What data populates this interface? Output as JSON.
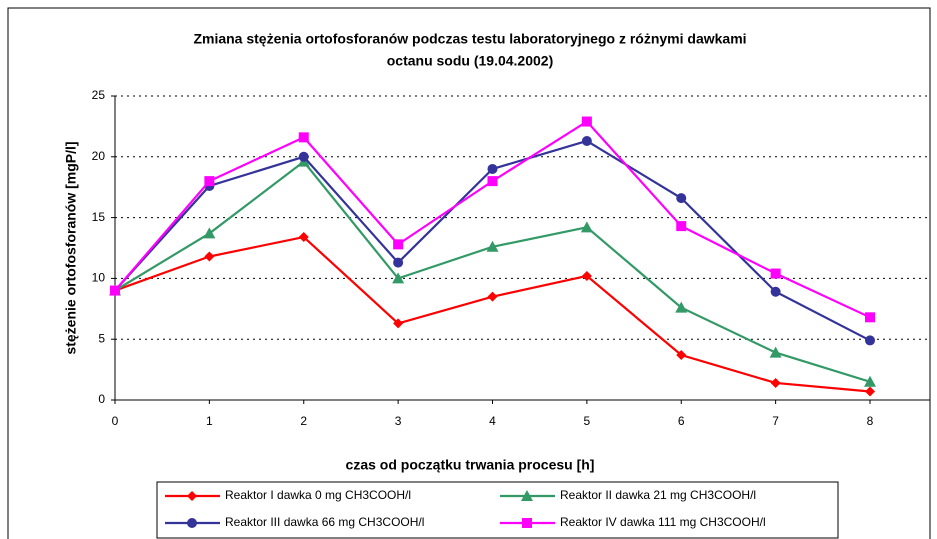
{
  "chart_data": {
    "type": "line",
    "title": [
      "Zmiana stężenia ortofosforanów   podczas testu laboratoryjnego z różnymi dawkami",
      "octanu sodu (19.04.2002)"
    ],
    "x_label": "czas od początku trwania procesu [h]",
    "y_label": "stężenie ortofosforanów [mgP/l]",
    "x": [
      0,
      1,
      2,
      3,
      4,
      5,
      6,
      7,
      8
    ],
    "xlim": [
      0,
      8
    ],
    "xticks": [
      0,
      1,
      2,
      3,
      4,
      5,
      6,
      7,
      8
    ],
    "ylim": [
      0,
      25
    ],
    "yticks": [
      0,
      5,
      10,
      15,
      20,
      25
    ],
    "grid": true,
    "series": [
      {
        "name": "Reaktor I dawka 0 mg CH3COOH/l",
        "color": "#ff0000",
        "marker": "diamond",
        "values": [
          9.0,
          11.8,
          13.4,
          6.3,
          8.5,
          10.2,
          3.7,
          1.4,
          0.7
        ]
      },
      {
        "name": "Reaktor II dawka 21 mg CH3COOH/l",
        "color": "#339966",
        "marker": "triangle",
        "values": [
          9.0,
          13.7,
          19.6,
          10.0,
          12.6,
          14.2,
          7.6,
          3.9,
          1.5
        ]
      },
      {
        "name": "Reaktor III dawka 66 mg CH3COOH/l",
        "color": "#333399",
        "marker": "circle",
        "values": [
          9.0,
          17.6,
          20.0,
          11.3,
          19.0,
          21.3,
          16.6,
          8.9,
          4.9
        ]
      },
      {
        "name": "Reaktor IV dawka 111 mg CH3COOH/l",
        "color": "#ff00ff",
        "marker": "square",
        "values": [
          9.0,
          18.0,
          21.6,
          12.8,
          18.0,
          22.9,
          14.3,
          10.4,
          6.8
        ]
      }
    ]
  }
}
